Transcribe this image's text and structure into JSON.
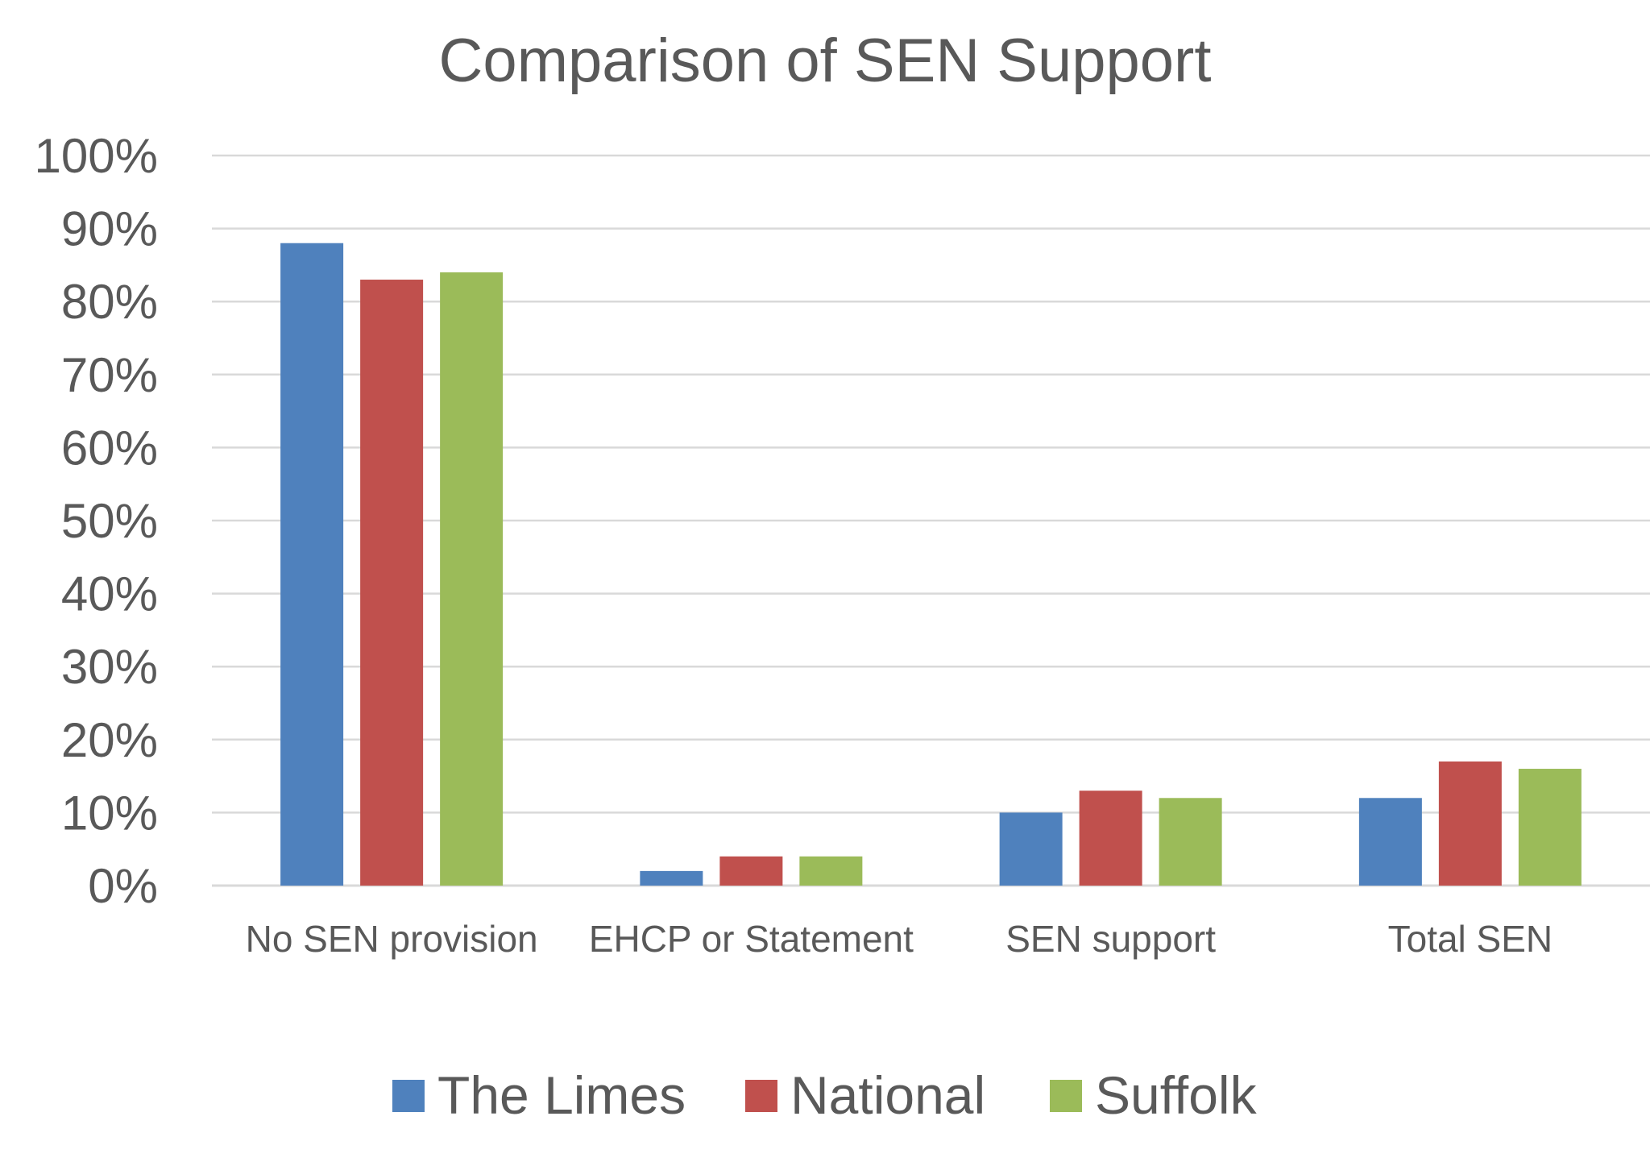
{
  "chart_data": {
    "type": "bar",
    "title": "Comparison of SEN Support",
    "xlabel": "",
    "ylabel": "",
    "categories": [
      "No SEN provision",
      "EHCP or Statement",
      "SEN support",
      "Total SEN"
    ],
    "series": [
      {
        "name": "The Limes",
        "color": "#4f81bd",
        "values": [
          88,
          2,
          10,
          12
        ]
      },
      {
        "name": "National",
        "color": "#c0504d",
        "values": [
          83,
          4,
          13,
          17
        ]
      },
      {
        "name": "Suffolk",
        "color": "#9bbb59",
        "values": [
          84,
          4,
          12,
          16
        ]
      }
    ],
    "ylim": [
      0,
      100
    ],
    "yticks": [
      0,
      10,
      20,
      30,
      40,
      50,
      60,
      70,
      80,
      90,
      100
    ],
    "ytick_labels": [
      "0%",
      "10%",
      "20%",
      "30%",
      "40%",
      "50%",
      "60%",
      "70%",
      "80%",
      "90%",
      "100%"
    ],
    "grid": true,
    "legend_position": "bottom"
  }
}
